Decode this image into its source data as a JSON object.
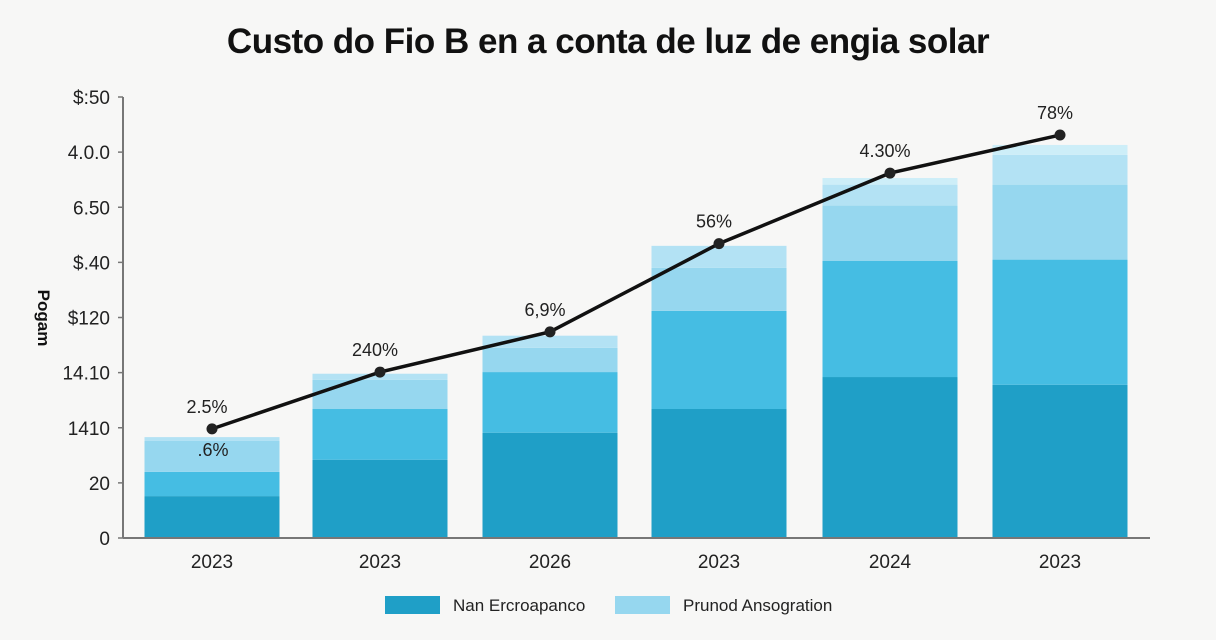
{
  "chart_data": {
    "type": "bar",
    "stacked": true,
    "title": "Custo do Fio B en a conta de luz de engia solar",
    "ylabel": "Pogam",
    "xlabel": "",
    "y_tick_labels": [
      "0",
      "20",
      "1410",
      "14.10",
      "$120",
      "$.40",
      "6.50",
      "4.0.0",
      "$:50"
    ],
    "ylim": [
      0,
      8
    ],
    "grid": false,
    "legend_position": "bottom",
    "categories": [
      "2023",
      "2023",
      "2026",
      "2023",
      "2024",
      "2023"
    ],
    "series": [
      {
        "name": "Nan Ercroapanco",
        "color": "#1f9fc7",
        "values": [
          0.76,
          1.42,
          1.91,
          2.34,
          2.92,
          2.78
        ]
      },
      {
        "color": "#45bde3",
        "values": [
          0.44,
          0.92,
          1.1,
          1.78,
          2.11,
          2.27
        ]
      },
      {
        "name": "Prunod Ansogration",
        "color": "#96d7ef",
        "values": [
          0.56,
          0.53,
          0.44,
          0.78,
          1.0,
          1.36
        ]
      },
      {
        "color": "#b3e2f4",
        "values": [
          0.07,
          0.11,
          0.22,
          0.4,
          0.38,
          0.54
        ]
      },
      {
        "color": "#cdeef8",
        "values": [
          0,
          0,
          0,
          0,
          0.12,
          0.18
        ]
      }
    ],
    "line": {
      "color": "#111111",
      "values": [
        1.98,
        3.01,
        3.74,
        5.34,
        6.62,
        7.31
      ],
      "labels": [
        "2.5%",
        "240%",
        "6,9%",
        "56%",
        "4.30%",
        "78%"
      ]
    },
    "annotations": [
      ".6%"
    ]
  }
}
